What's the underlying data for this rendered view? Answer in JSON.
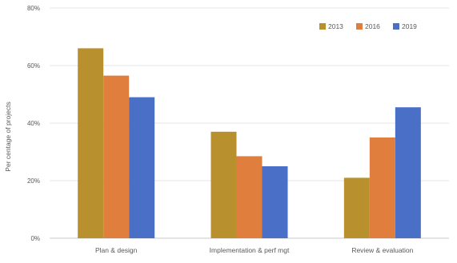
{
  "chart_data": {
    "type": "bar",
    "ylabel": "Per centage of projects",
    "categories": [
      "Plan & design",
      "Implementation & perf mgt",
      "Review & evaluation"
    ],
    "series": [
      {
        "name": "2013",
        "color": "#b8902e",
        "values": [
          66,
          37,
          21
        ]
      },
      {
        "name": "2016",
        "color": "#e07f3d",
        "values": [
          56.5,
          28.5,
          35
        ]
      },
      {
        "name": "2019",
        "color": "#4a6fc6",
        "values": [
          49,
          25,
          45.5
        ]
      }
    ],
    "ylim": [
      0,
      80
    ],
    "yticks": [
      0,
      20,
      40,
      60,
      80
    ],
    "ytick_labels": [
      "0%",
      "20%",
      "40%",
      "60%",
      "80%"
    ],
    "grid": true,
    "legend_position": "top-right"
  }
}
